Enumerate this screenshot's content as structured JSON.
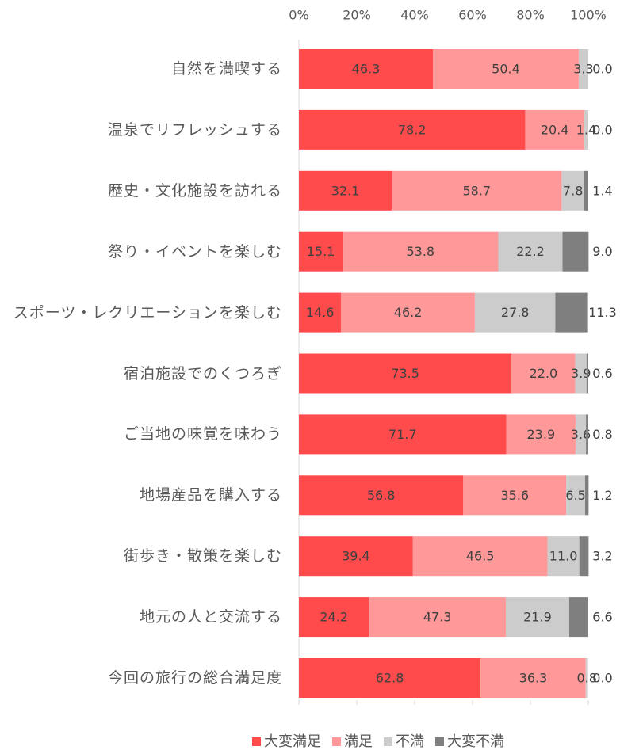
{
  "chart_data": {
    "type": "stacked-bar-horizontal",
    "categories": [
      "自然を満喫する",
      "温泉でリフレッシュする",
      "歴史・文化施設を訪れる",
      "祭り・イベントを楽しむ",
      "スポーツ・レクリエーションを楽しむ",
      "宿泊施設でのくつろぎ",
      "ご当地の味覚を味わう",
      "地場産品を購入する",
      "街歩き・散策を楽しむ",
      "地元の人と交流する",
      "今回の旅行の総合満足度"
    ],
    "series": [
      {
        "name": "大変満足",
        "color": "#ff4b4b",
        "values": [
          46.3,
          78.2,
          32.1,
          15.1,
          14.6,
          73.5,
          71.7,
          56.8,
          39.4,
          24.2,
          62.8
        ]
      },
      {
        "name": "満足",
        "color": "#ff9999",
        "values": [
          50.4,
          20.4,
          58.7,
          53.8,
          46.2,
          22.0,
          23.9,
          35.6,
          46.5,
          47.3,
          36.3
        ]
      },
      {
        "name": "不満",
        "color": "#cccccc",
        "values": [
          3.3,
          1.4,
          7.8,
          22.2,
          27.8,
          3.9,
          3.6,
          6.5,
          11.0,
          21.9,
          0.8
        ]
      },
      {
        "name": "大変不満",
        "color": "#7f7f7f",
        "values": [
          0.0,
          0.0,
          1.4,
          9.0,
          11.3,
          0.6,
          0.8,
          1.2,
          3.2,
          6.6,
          0.0
        ]
      }
    ],
    "value_labels": [
      [
        "46.3",
        "78.2",
        "32.1",
        "15.1",
        "14.6",
        "73.5",
        "71.7",
        "56.8",
        "39.4",
        "24.2",
        "62.8"
      ],
      [
        "50.4",
        "20.4",
        "58.7",
        "53.8",
        "46.2",
        "22.0",
        "23.9",
        "35.6",
        "46.5",
        "47.3",
        "36.3"
      ],
      [
        "3.3",
        "1.4",
        "7.8",
        "22.2",
        "27.8",
        "3.9",
        "3.6",
        "6.5",
        "11.0",
        "21.9",
        "0.8"
      ],
      [
        "0.0",
        "0.0",
        "1.4",
        "9.0",
        "11.3",
        "0.6",
        "0.8",
        "1.2",
        "3.2",
        "6.6",
        "0.0"
      ]
    ],
    "xlim": [
      0,
      100
    ],
    "xticks": [
      {
        "value": 0,
        "label": "0%"
      },
      {
        "value": 20,
        "label": "20%"
      },
      {
        "value": 40,
        "label": "40%"
      },
      {
        "value": 60,
        "label": "60%"
      },
      {
        "value": 80,
        "label": "80%"
      },
      {
        "value": 100,
        "label": "100%"
      }
    ],
    "legend": "bottom"
  }
}
